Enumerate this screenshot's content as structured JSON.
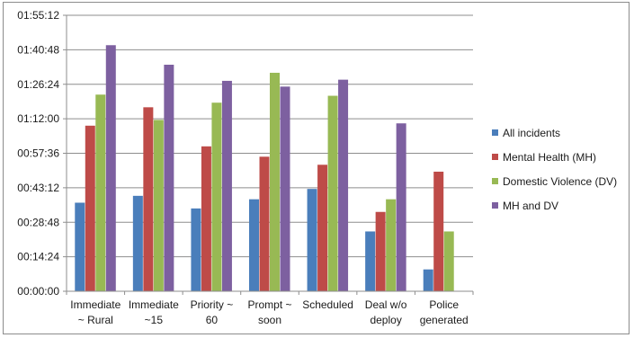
{
  "chart_data": {
    "type": "bar",
    "title": "",
    "xlabel": "",
    "ylabel": "",
    "ylim": [
      "00:00:00",
      "01:55:12"
    ],
    "y_ticks": [
      "00:00:00",
      "00:14:24",
      "00:28:48",
      "00:43:12",
      "00:57:36",
      "01:12:00",
      "01:26:24",
      "01:40:48",
      "01:55:12"
    ],
    "categories": [
      [
        "Immediate",
        "~ Rural"
      ],
      [
        "Immediate",
        "~15"
      ],
      [
        "Priority ~",
        "60"
      ],
      [
        "Prompt ~",
        "soon"
      ],
      [
        "Scheduled"
      ],
      [
        "Deal w/o",
        "deploy"
      ],
      [
        "Police",
        "generated"
      ]
    ],
    "series": [
      {
        "name": "All incidents",
        "color": "#4a7ebb",
        "values": [
          "00:36:58",
          "00:39:50",
          "00:34:34",
          "00:38:24",
          "00:42:43",
          "00:24:58",
          "00:09:07"
        ]
      },
      {
        "name": "Mental Health (MH)",
        "color": "#be4b48",
        "values": [
          "01:09:07",
          "01:16:48",
          "01:00:29",
          "00:56:10",
          "00:52:48",
          "00:33:07",
          "00:49:55"
        ]
      },
      {
        "name": "Domestic Violence (DV)",
        "color": "#98b954",
        "values": [
          "01:22:05",
          "01:11:31",
          "01:18:43",
          "01:31:12",
          "01:21:36",
          "00:38:24",
          "00:24:58"
        ]
      },
      {
        "name": "MH and DV",
        "color": "#7d60a0",
        "values": [
          "01:42:43",
          "01:34:34",
          "01:27:50",
          "01:25:26",
          "01:28:19",
          "01:10:05",
          null
        ]
      }
    ],
    "grid": true,
    "legend_position": "right"
  }
}
